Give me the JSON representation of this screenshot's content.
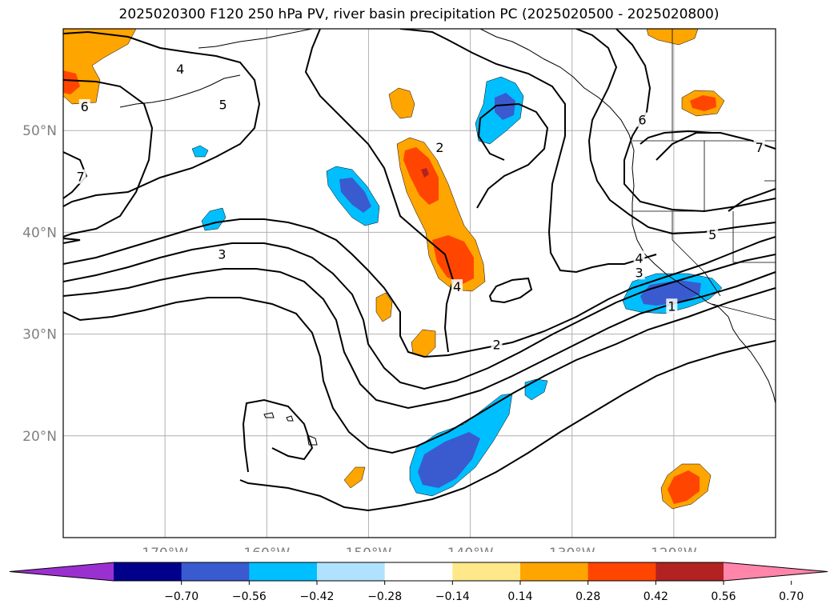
{
  "title": "2025020300 F120 250 hPa PV, river basin precipitation PC (2025020500 - 2025020800)",
  "map": {
    "lon_range": [
      -180,
      -110
    ],
    "lat_range": [
      10,
      60
    ],
    "lon_ticks": [
      {
        "value": -170,
        "label": "170°W"
      },
      {
        "value": -160,
        "label": "160°W"
      },
      {
        "value": -150,
        "label": "150°W"
      },
      {
        "value": -140,
        "label": "140°W"
      },
      {
        "value": -130,
        "label": "130°W"
      },
      {
        "value": -120,
        "label": "120°W"
      }
    ],
    "lat_ticks": [
      {
        "value": 20,
        "label": "20°N"
      },
      {
        "value": 30,
        "label": "30°N"
      },
      {
        "value": 40,
        "label": "40°N"
      },
      {
        "value": 50,
        "label": "50°N"
      }
    ],
    "grid": true,
    "tick_label_color": "#808080"
  },
  "pv_contour_labels": [
    {
      "text": "4",
      "lon": -168.5,
      "lat": 56.0
    },
    {
      "text": "6",
      "lon": -177.9,
      "lat": 52.3
    },
    {
      "text": "5",
      "lon": -164.3,
      "lat": 52.5
    },
    {
      "text": "7",
      "lon": -178.3,
      "lat": 45.4
    },
    {
      "text": "3",
      "lon": -164.4,
      "lat": 37.8
    },
    {
      "text": "2",
      "lon": -143.0,
      "lat": 48.3
    },
    {
      "text": "4",
      "lon": -141.3,
      "lat": 34.6
    },
    {
      "text": "2",
      "lon": -137.4,
      "lat": 28.9
    },
    {
      "text": "6",
      "lon": -123.1,
      "lat": 51.0
    },
    {
      "text": "7",
      "lon": -111.6,
      "lat": 48.3
    },
    {
      "text": "5",
      "lon": -116.2,
      "lat": 39.7
    },
    {
      "text": "4",
      "lon": -123.4,
      "lat": 37.4
    },
    {
      "text": "3",
      "lon": -123.4,
      "lat": 36.0
    },
    {
      "text": "1",
      "lon": -120.2,
      "lat": 32.7
    }
  ],
  "colorbar": {
    "levels": [
      -0.7,
      -0.56,
      -0.42,
      -0.28,
      -0.14,
      0.14,
      0.28,
      0.42,
      0.56,
      0.7
    ],
    "tick_labels": [
      "−0.70",
      "−0.56",
      "−0.42",
      "−0.28",
      "−0.14",
      "0.14",
      "0.28",
      "0.42",
      "0.56",
      "0.70"
    ],
    "colors": [
      "#9b30d0",
      "#00008b",
      "#3a5bd0",
      "#00bfff",
      "#b0e2ff",
      "#ffffff",
      "#ffe88a",
      "#ffa500",
      "#ff4500",
      "#b22222",
      "#ff85aa"
    ]
  },
  "colors": {
    "contour": "#000000",
    "coastline": "#000000",
    "grid": "#b0b0b0"
  }
}
